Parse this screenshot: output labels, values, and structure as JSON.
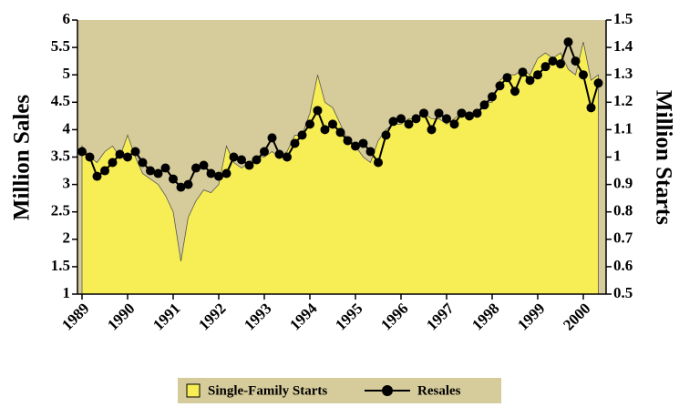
{
  "chart_data": {
    "type": "area-line",
    "x": [
      1989,
      1989.17,
      1989.33,
      1989.5,
      1989.67,
      1989.83,
      1990,
      1990.17,
      1990.33,
      1990.5,
      1990.67,
      1990.83,
      1991,
      1991.17,
      1991.33,
      1991.5,
      1991.67,
      1991.83,
      1992,
      1992.17,
      1992.33,
      1992.5,
      1992.67,
      1992.83,
      1993,
      1993.17,
      1993.33,
      1993.5,
      1993.67,
      1993.83,
      1994,
      1994.17,
      1994.33,
      1994.5,
      1994.67,
      1994.83,
      1995,
      1995.17,
      1995.33,
      1995.5,
      1995.67,
      1995.83,
      1996,
      1996.17,
      1996.33,
      1996.5,
      1996.67,
      1996.83,
      1997,
      1997.17,
      1997.33,
      1997.5,
      1997.67,
      1997.83,
      1998,
      1998.17,
      1998.33,
      1998.5,
      1998.67,
      1998.83,
      1999,
      1999.17,
      1999.33,
      1999.5,
      1999.67,
      1999.83,
      2000,
      2000.17,
      2000.33
    ],
    "series": [
      {
        "name": "Single-Family Starts",
        "type": "area",
        "axis": "y2",
        "color": "#f7ee55",
        "values": [
          1.04,
          1.0,
          0.98,
          1.02,
          1.04,
          1.0,
          1.08,
          1.0,
          0.94,
          0.92,
          0.9,
          0.86,
          0.8,
          0.62,
          0.78,
          0.84,
          0.88,
          0.87,
          0.9,
          1.04,
          0.98,
          0.96,
          0.98,
          1.0,
          1.0,
          1.02,
          1.0,
          1.02,
          1.08,
          1.08,
          1.16,
          1.3,
          1.2,
          1.18,
          1.12,
          1.06,
          1.04,
          1.0,
          0.98,
          1.06,
          1.1,
          1.12,
          1.12,
          1.14,
          1.14,
          1.16,
          1.14,
          1.14,
          1.12,
          1.14,
          1.16,
          1.14,
          1.16,
          1.2,
          1.2,
          1.28,
          1.3,
          1.3,
          1.32,
          1.3,
          1.36,
          1.38,
          1.36,
          1.38,
          1.32,
          1.3,
          1.42,
          1.28,
          1.3
        ]
      },
      {
        "name": "Resales",
        "type": "line",
        "axis": "y",
        "color": "#000000",
        "values": [
          3.6,
          3.5,
          3.15,
          3.25,
          3.4,
          3.55,
          3.5,
          3.6,
          3.4,
          3.25,
          3.2,
          3.3,
          3.1,
          2.95,
          3.0,
          3.3,
          3.35,
          3.2,
          3.15,
          3.2,
          3.5,
          3.45,
          3.35,
          3.45,
          3.6,
          3.85,
          3.55,
          3.5,
          3.75,
          3.9,
          4.1,
          4.35,
          4.0,
          4.1,
          3.95,
          3.8,
          3.7,
          3.75,
          3.6,
          3.4,
          3.9,
          4.15,
          4.2,
          4.1,
          4.2,
          4.3,
          4.0,
          4.3,
          4.2,
          4.1,
          4.3,
          4.25,
          4.3,
          4.45,
          4.6,
          4.8,
          4.95,
          4.7,
          5.05,
          4.9,
          5.0,
          5.15,
          5.25,
          5.2,
          5.6,
          5.25,
          5.0,
          4.4,
          4.85
        ]
      }
    ],
    "ylabel": "Million Sales",
    "y2label": "Million Starts",
    "xlim": [
      1988.9,
      2000.5
    ],
    "xticks": [
      1989,
      1990,
      1991,
      1992,
      1993,
      1994,
      1995,
      1996,
      1997,
      1998,
      1999,
      2000
    ],
    "ylim": [
      1,
      6
    ],
    "yticks": [
      1,
      1.5,
      2,
      2.5,
      3,
      3.5,
      4,
      4.5,
      5,
      5.5,
      6
    ],
    "y2lim": [
      0.5,
      1.5
    ],
    "y2ticks": [
      0.5,
      0.6,
      0.7,
      0.8,
      0.9,
      1,
      1.1,
      1.2,
      1.3,
      1.4,
      1.5
    ],
    "plot_background": "#d6cb9a",
    "legend": "bottom"
  }
}
